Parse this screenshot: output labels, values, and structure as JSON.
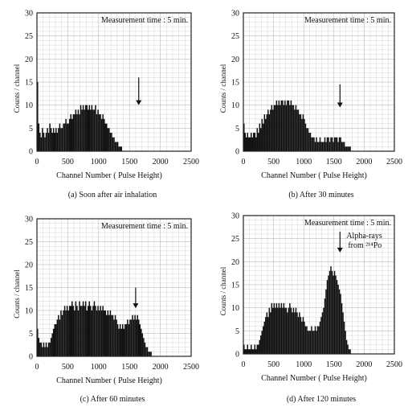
{
  "chart_data": [
    {
      "type": "bar",
      "panel_caption": "(a) Soon after air inhalation",
      "annotation": "Measurement time : 5 min.",
      "xlabel": "Channel Number ( Pulse Height)",
      "ylabel": "Counts / channel",
      "xlim": [
        0,
        2500
      ],
      "ylim": [
        0,
        30
      ],
      "xticks": [
        0,
        500,
        1000,
        1500,
        2000,
        2500
      ],
      "yticks": [
        0,
        5,
        10,
        15,
        20,
        25,
        30
      ],
      "grid": true,
      "bin_width": 20,
      "arrow_x": 1650,
      "arrow_label": "",
      "x": [
        0,
        20,
        40,
        60,
        80,
        100,
        120,
        140,
        160,
        180,
        200,
        220,
        240,
        260,
        280,
        300,
        320,
        340,
        360,
        380,
        400,
        420,
        440,
        460,
        480,
        500,
        520,
        540,
        560,
        580,
        600,
        620,
        640,
        660,
        680,
        700,
        720,
        740,
        760,
        780,
        800,
        820,
        840,
        860,
        880,
        900,
        920,
        940,
        960,
        980,
        1000,
        1020,
        1040,
        1060,
        1080,
        1100,
        1120,
        1140,
        1160,
        1180,
        1200,
        1220,
        1240,
        1260,
        1280,
        1300,
        1320,
        1340,
        1360,
        1380,
        1400,
        1420,
        1440,
        1460,
        1480,
        1500,
        1520,
        1540,
        1560,
        1580,
        1600,
        1620,
        1640,
        1660,
        1680,
        1700,
        1720,
        1740,
        1760,
        1780,
        1800,
        1820,
        1840,
        1860,
        1880,
        1900,
        1920,
        1940,
        1960,
        1980,
        2000,
        2020,
        2040,
        2060,
        2080,
        2100,
        2120,
        2140,
        2160,
        2180,
        2200,
        2220,
        2240,
        2260,
        2280,
        2300,
        2320,
        2340,
        2360,
        2380,
        2400,
        2420,
        2440,
        2460,
        2480
      ],
      "values": [
        15,
        6,
        4,
        3,
        5,
        4,
        3,
        4,
        5,
        4,
        6,
        5,
        4,
        5,
        4,
        5,
        4,
        5,
        6,
        5,
        5,
        6,
        6,
        7,
        6,
        6,
        7,
        8,
        7,
        8,
        8,
        9,
        8,
        9,
        8,
        10,
        9,
        10,
        9,
        10,
        10,
        9,
        10,
        9,
        10,
        9,
        9,
        10,
        8,
        9,
        8,
        8,
        7,
        8,
        7,
        6,
        6,
        5,
        5,
        4,
        4,
        3,
        3,
        2,
        2,
        2,
        1,
        1,
        1,
        0,
        0,
        0,
        0,
        0,
        0,
        0,
        0,
        0,
        0,
        0,
        0,
        0,
        0,
        0,
        0,
        0,
        0,
        0,
        0,
        0,
        0,
        0,
        0,
        0,
        0,
        0,
        0,
        0,
        0,
        0,
        0,
        0,
        0,
        0,
        0,
        0,
        0,
        0,
        0,
        0,
        0,
        0,
        0,
        0,
        0,
        0,
        0,
        0,
        0,
        0,
        0,
        0,
        0,
        0,
        0
      ]
    },
    {
      "type": "bar",
      "panel_caption": "(b) After 30 minutes",
      "annotation": "Measurement time : 5 min.",
      "xlabel": "Channel Number ( Pulse Height)",
      "ylabel": "Counts / channel",
      "xlim": [
        0,
        2500
      ],
      "ylim": [
        0,
        30
      ],
      "xticks": [
        0,
        500,
        1000,
        1500,
        2000,
        2500
      ],
      "yticks": [
        0,
        5,
        10,
        15,
        20,
        25,
        30
      ],
      "grid": true,
      "bin_width": 20,
      "arrow_x": 1600,
      "arrow_label": "",
      "x": [
        0,
        20,
        40,
        60,
        80,
        100,
        120,
        140,
        160,
        180,
        200,
        220,
        240,
        260,
        280,
        300,
        320,
        340,
        360,
        380,
        400,
        420,
        440,
        460,
        480,
        500,
        520,
        540,
        560,
        580,
        600,
        620,
        640,
        660,
        680,
        700,
        720,
        740,
        760,
        780,
        800,
        820,
        840,
        860,
        880,
        900,
        920,
        940,
        960,
        980,
        1000,
        1020,
        1040,
        1060,
        1080,
        1100,
        1120,
        1140,
        1160,
        1180,
        1200,
        1220,
        1240,
        1260,
        1280,
        1300,
        1320,
        1340,
        1360,
        1380,
        1400,
        1420,
        1440,
        1460,
        1480,
        1500,
        1520,
        1540,
        1560,
        1580,
        1600,
        1620,
        1640,
        1660,
        1680,
        1700,
        1720,
        1740,
        1760,
        1780,
        1800,
        1820,
        1840,
        1860,
        1880,
        1900,
        1920,
        1940,
        1960,
        1980,
        2000,
        2020,
        2040,
        2060,
        2080,
        2100,
        2120,
        2140,
        2160,
        2180,
        2200,
        2220,
        2240,
        2260,
        2280,
        2300,
        2320,
        2340,
        2360,
        2380,
        2400,
        2420,
        2440,
        2460,
        2480
      ],
      "values": [
        6,
        4,
        3,
        4,
        3,
        3,
        4,
        3,
        4,
        4,
        3,
        5,
        4,
        6,
        5,
        7,
        6,
        8,
        7,
        8,
        9,
        8,
        9,
        10,
        9,
        10,
        10,
        11,
        10,
        11,
        10,
        11,
        11,
        10,
        11,
        10,
        11,
        11,
        10,
        11,
        10,
        10,
        9,
        10,
        9,
        9,
        8,
        8,
        7,
        8,
        7,
        6,
        5,
        5,
        4,
        4,
        3,
        3,
        3,
        2,
        3,
        2,
        2,
        3,
        2,
        2,
        2,
        3,
        2,
        3,
        3,
        2,
        3,
        3,
        2,
        3,
        3,
        3,
        2,
        3,
        3,
        2,
        2,
        2,
        1,
        1,
        1,
        1,
        1,
        0,
        0,
        0,
        0,
        0,
        0,
        0,
        0,
        0,
        0,
        0,
        0,
        0,
        0,
        0,
        0,
        0,
        0,
        0,
        0,
        0,
        0,
        0,
        0,
        0,
        0,
        0,
        0,
        0,
        0,
        0,
        0,
        0,
        0,
        0,
        0
      ]
    },
    {
      "type": "bar",
      "panel_caption": "(c) After 60 minutes",
      "annotation": "Measurement time : 5 min.",
      "xlabel": "Channel Number ( Pulse Height)",
      "ylabel": "Counts / channel",
      "xlim": [
        0,
        2500
      ],
      "ylim": [
        0,
        30
      ],
      "xticks": [
        0,
        500,
        1000,
        1500,
        2000,
        2500
      ],
      "yticks": [
        0,
        5,
        10,
        15,
        20,
        25,
        30
      ],
      "grid": true,
      "bin_width": 20,
      "arrow_x": 1600,
      "arrow_label": "",
      "x": [
        0,
        20,
        40,
        60,
        80,
        100,
        120,
        140,
        160,
        180,
        200,
        220,
        240,
        260,
        280,
        300,
        320,
        340,
        360,
        380,
        400,
        420,
        440,
        460,
        480,
        500,
        520,
        540,
        560,
        580,
        600,
        620,
        640,
        660,
        680,
        700,
        720,
        740,
        760,
        780,
        800,
        820,
        840,
        860,
        880,
        900,
        920,
        940,
        960,
        980,
        1000,
        1020,
        1040,
        1060,
        1080,
        1100,
        1120,
        1140,
        1160,
        1180,
        1200,
        1220,
        1240,
        1260,
        1280,
        1300,
        1320,
        1340,
        1360,
        1380,
        1400,
        1420,
        1440,
        1460,
        1480,
        1500,
        1520,
        1540,
        1560,
        1580,
        1600,
        1620,
        1640,
        1660,
        1680,
        1700,
        1720,
        1740,
        1760,
        1780,
        1800,
        1820,
        1840,
        1860,
        1880,
        1900,
        1920,
        1940,
        1960,
        1980,
        2000,
        2020,
        2040,
        2060,
        2080,
        2100,
        2120,
        2140,
        2160,
        2180,
        2200,
        2220,
        2240,
        2260,
        2280,
        2300,
        2320,
        2340,
        2360,
        2380,
        2400,
        2420,
        2440,
        2460,
        2480
      ],
      "values": [
        6,
        4,
        3,
        3,
        2,
        3,
        2,
        3,
        2,
        3,
        3,
        4,
        5,
        6,
        7,
        7,
        8,
        9,
        8,
        10,
        9,
        10,
        11,
        10,
        11,
        10,
        11,
        11,
        12,
        11,
        10,
        12,
        11,
        10,
        12,
        11,
        11,
        12,
        11,
        12,
        10,
        11,
        12,
        11,
        10,
        11,
        12,
        11,
        10,
        11,
        10,
        11,
        10,
        11,
        10,
        10,
        9,
        10,
        9,
        10,
        9,
        9,
        8,
        9,
        8,
        7,
        6,
        7,
        6,
        7,
        6,
        7,
        7,
        8,
        7,
        8,
        8,
        9,
        8,
        9,
        8,
        9,
        8,
        7,
        6,
        5,
        4,
        3,
        2,
        2,
        1,
        1,
        1,
        0,
        0,
        0,
        0,
        0,
        0,
        0,
        0,
        0,
        0,
        0,
        0,
        0,
        0,
        0,
        0,
        0,
        0,
        0,
        0,
        0,
        0,
        0,
        0,
        0,
        0,
        0,
        0,
        0,
        0,
        0,
        0
      ]
    },
    {
      "type": "bar",
      "panel_caption": "(d) After 120 minutes",
      "annotation": "Measurement time : 5 min.",
      "xlabel": "Channel Number ( Pulse Height)",
      "ylabel": "Counts / channel",
      "xlim": [
        0,
        2500
      ],
      "ylim": [
        0,
        30
      ],
      "xticks": [
        0,
        500,
        1000,
        1500,
        2000,
        2500
      ],
      "yticks": [
        0,
        5,
        10,
        15,
        20,
        25,
        30
      ],
      "grid": true,
      "bin_width": 20,
      "arrow_x": 1600,
      "arrow_label": "Alpha-rays",
      "arrow_label2": "from ²¹⁴Po",
      "x": [
        0,
        20,
        40,
        60,
        80,
        100,
        120,
        140,
        160,
        180,
        200,
        220,
        240,
        260,
        280,
        300,
        320,
        340,
        360,
        380,
        400,
        420,
        440,
        460,
        480,
        500,
        520,
        540,
        560,
        580,
        600,
        620,
        640,
        660,
        680,
        700,
        720,
        740,
        760,
        780,
        800,
        820,
        840,
        860,
        880,
        900,
        920,
        940,
        960,
        980,
        1000,
        1020,
        1040,
        1060,
        1080,
        1100,
        1120,
        1140,
        1160,
        1180,
        1200,
        1220,
        1240,
        1260,
        1280,
        1300,
        1320,
        1340,
        1360,
        1380,
        1400,
        1420,
        1440,
        1460,
        1480,
        1500,
        1520,
        1540,
        1560,
        1580,
        1600,
        1620,
        1640,
        1660,
        1680,
        1700,
        1720,
        1740,
        1760,
        1780,
        1800,
        1820,
        1840,
        1860,
        1880,
        1900,
        1920,
        1940,
        1960,
        1980,
        2000,
        2020,
        2040,
        2060,
        2080,
        2100,
        2120,
        2140,
        2160,
        2180,
        2200,
        2220,
        2240,
        2260,
        2280,
        2300,
        2320,
        2340,
        2360,
        2380,
        2400,
        2420,
        2440,
        2460,
        2480
      ],
      "values": [
        2,
        1,
        1,
        2,
        1,
        1,
        2,
        1,
        1,
        2,
        1,
        2,
        2,
        3,
        4,
        5,
        6,
        7,
        8,
        9,
        8,
        10,
        9,
        11,
        10,
        11,
        10,
        11,
        10,
        11,
        10,
        11,
        10,
        11,
        10,
        10,
        9,
        10,
        11,
        10,
        9,
        10,
        9,
        10,
        9,
        8,
        9,
        8,
        7,
        8,
        7,
        6,
        6,
        5,
        5,
        5,
        6,
        5,
        5,
        6,
        5,
        6,
        6,
        7,
        8,
        9,
        10,
        12,
        14,
        16,
        17,
        18,
        19,
        18,
        17,
        18,
        17,
        16,
        15,
        14,
        13,
        11,
        9,
        7,
        5,
        3,
        2,
        1,
        1,
        0,
        0,
        0,
        0,
        0,
        0,
        0,
        0,
        0,
        0,
        0,
        0,
        0,
        0,
        0,
        0,
        0,
        0,
        0,
        0,
        0,
        0,
        0,
        0,
        0,
        0,
        0,
        0,
        0,
        0,
        0,
        0,
        0,
        0,
        0,
        0
      ]
    }
  ]
}
